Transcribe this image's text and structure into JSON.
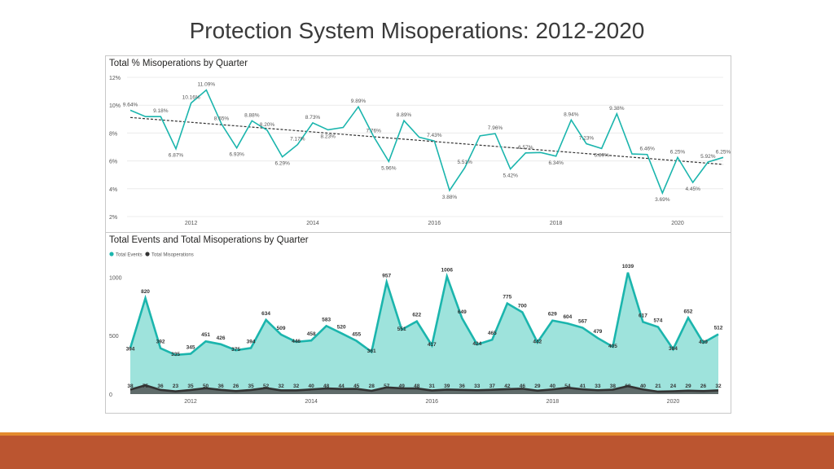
{
  "slide": {
    "title": "Protection System Misoperations:  2012-2020"
  },
  "chart_data": [
    {
      "type": "line",
      "title": "Total % Misoperations by Quarter",
      "ylim": [
        2,
        12
      ],
      "yticks": [
        "2%",
        "4%",
        "6%",
        "8%",
        "10%",
        "12%"
      ],
      "ytick_values": [
        2,
        4,
        6,
        8,
        10,
        12
      ],
      "xtick_labels": [
        "2012",
        "2014",
        "2016",
        "2018",
        "2020"
      ],
      "xtick_positions": [
        4,
        12,
        20,
        28,
        36
      ],
      "grid": true,
      "trendline": {
        "style": "dashed",
        "color": "#333333"
      },
      "series": [
        {
          "color": "#1bb5ad",
          "values": [
            9.64,
            9.18,
            9.18,
            6.87,
            10.16,
            11.09,
            8.65,
            6.93,
            8.88,
            8.2,
            6.29,
            7.17,
            8.73,
            8.23,
            8.4,
            9.89,
            7.76,
            5.96,
            8.89,
            7.7,
            7.43,
            3.88,
            5.51,
            7.8,
            7.96,
            5.42,
            6.57,
            6.6,
            6.34,
            8.94,
            7.23,
            6.89,
            9.38,
            6.5,
            6.46,
            3.69,
            6.25,
            4.45,
            5.92,
            6.25
          ],
          "labels": [
            "9.64%",
            "",
            "9.18%",
            "6.87%",
            "10.16%",
            "11.09%",
            "8.65%",
            "6.93%",
            "8.88%",
            "8.20%",
            "6.29%",
            "7.17%",
            "8.73%",
            "8.23%",
            "",
            "9.89%",
            "7.76%",
            "5.96%",
            "8.89%",
            "",
            "7.43%",
            "3.88%",
            "5.51%",
            "",
            "7.96%",
            "5.42%",
            "6.57%",
            "",
            "6.34%",
            "8.94%",
            "7.23%",
            "6.89%",
            "9.38%",
            "",
            "6.46%",
            "3.69%",
            "6.25%",
            "4.45%",
            "5.92%",
            "6.25%"
          ]
        }
      ]
    },
    {
      "type": "area",
      "title": "Total Events and Total Misoperations by Quarter",
      "ylim": [
        0,
        1100
      ],
      "yticks": [
        "0",
        "500",
        "1000"
      ],
      "ytick_values": [
        0,
        500,
        1000
      ],
      "xtick_labels": [
        "2012",
        "2014",
        "2016",
        "2018",
        "2020"
      ],
      "xtick_positions": [
        4,
        12,
        20,
        28,
        36
      ],
      "legend": "top-left",
      "series": [
        {
          "name": "Total Events",
          "color": "#1bb5ad",
          "fill": "#9ee3dc",
          "values": [
            394,
            820,
            392,
            335,
            345,
            451,
            426,
            375,
            394,
            634,
            509,
            446,
            458,
            583,
            520,
            455,
            361,
            957,
            551,
            622,
            417,
            1006,
            649,
            424,
            465,
            775,
            700,
            442,
            629,
            604,
            567,
            479,
            405,
            1039,
            617,
            574,
            384,
            652,
            439,
            512
          ]
        },
        {
          "name": "Total Misoperations",
          "color": "#333333",
          "fill": "#5f6b6a",
          "values": [
            38,
            75,
            36,
            23,
            35,
            50,
            36,
            26,
            35,
            52,
            32,
            32,
            40,
            48,
            44,
            45,
            28,
            57,
            49,
            48,
            31,
            39,
            36,
            33,
            37,
            42,
            46,
            29,
            40,
            54,
            41,
            33,
            38,
            68,
            40,
            21,
            24,
            29,
            26,
            32
          ]
        }
      ]
    }
  ]
}
